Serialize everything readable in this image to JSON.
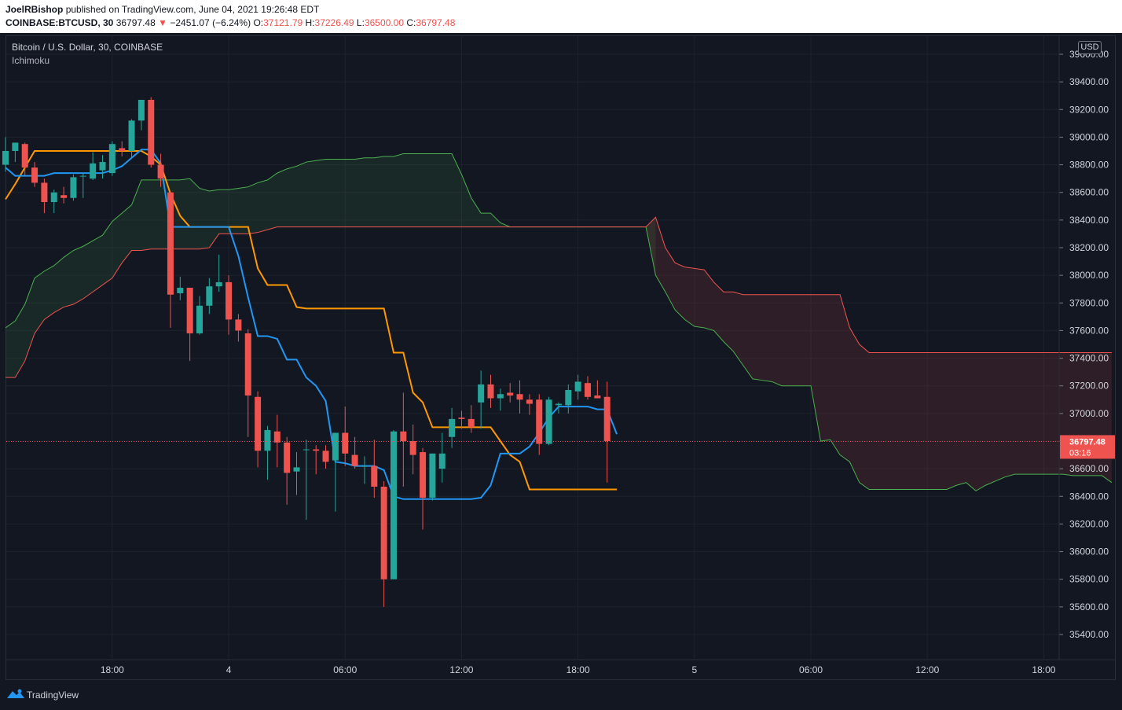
{
  "header": {
    "author": "JoelRBishop",
    "published": "published on TradingView.com, June 04, 2021 19:26:48 EDT",
    "symbol": "COINBASE:BTCUSD, 30",
    "last": "36797.48",
    "arrow": "▼",
    "change": "−2451.07 (−6.24%)",
    "o_label": "O:",
    "o_value": "37121.79",
    "h_label": "H:",
    "h_value": "37226.49",
    "l_label": "L:",
    "l_value": "36500.00",
    "c_label": "C:",
    "c_value": "36797.48"
  },
  "legend": {
    "title": "Bitcoin / U.S. Dollar, 30, COINBASE",
    "indicator": "Ichimoku"
  },
  "price_scale": {
    "currency": "USD"
  },
  "price_label": {
    "value": "36797.48",
    "countdown": "03:16"
  },
  "footer": {
    "brand": "TradingView",
    "icon": "tradingview-logo-icon"
  },
  "colors": {
    "background": "#131722",
    "up": "#26a69a",
    "down": "#ef5350",
    "conversion": "#2196f3",
    "base": "#ff9800",
    "span_a": "#4caf50",
    "span_b": "#ef5350"
  },
  "chart_data": {
    "type": "candlestick",
    "title": "Bitcoin / U.S. Dollar, 30, COINBASE",
    "xlabel": "",
    "ylabel": "",
    "ylim": [
      35200,
      39700
    ],
    "grid": true,
    "interval": "30",
    "x_ticks": [
      "18:00",
      "4",
      "06:00",
      "12:00",
      "18:00",
      "5",
      "06:00",
      "12:00",
      "18:00"
    ],
    "y_ticks": [
      "35400.00",
      "35600.00",
      "35800.00",
      "36000.00",
      "36200.00",
      "36400.00",
      "36600.00",
      "36800.00",
      "37000.00",
      "37200.00",
      "37400.00",
      "37600.00",
      "37800.00",
      "38000.00",
      "38200.00",
      "38400.00",
      "38600.00",
      "38800.00",
      "39000.00",
      "39200.00",
      "39400.00",
      "39600.00"
    ],
    "candles": [
      {
        "o": 38800,
        "h": 39000,
        "l": 38750,
        "c": 38900
      },
      {
        "o": 38900,
        "h": 38960,
        "l": 38820,
        "c": 38960
      },
      {
        "o": 38950,
        "h": 38960,
        "l": 38720,
        "c": 38780
      },
      {
        "o": 38780,
        "h": 38820,
        "l": 38640,
        "c": 38670
      },
      {
        "o": 38670,
        "h": 38700,
        "l": 38450,
        "c": 38530
      },
      {
        "o": 38530,
        "h": 38620,
        "l": 38450,
        "c": 38600
      },
      {
        "o": 38580,
        "h": 38640,
        "l": 38520,
        "c": 38560
      },
      {
        "o": 38560,
        "h": 38730,
        "l": 38540,
        "c": 38710
      },
      {
        "o": 38720,
        "h": 38740,
        "l": 38560,
        "c": 38720
      },
      {
        "o": 38700,
        "h": 38890,
        "l": 38690,
        "c": 38810
      },
      {
        "o": 38760,
        "h": 38870,
        "l": 38700,
        "c": 38820
      },
      {
        "o": 38740,
        "h": 38970,
        "l": 38720,
        "c": 38950
      },
      {
        "o": 38920,
        "h": 38970,
        "l": 38860,
        "c": 38900
      },
      {
        "o": 38900,
        "h": 39130,
        "l": 38850,
        "c": 39120
      },
      {
        "o": 39120,
        "h": 39270,
        "l": 39050,
        "c": 39270
      },
      {
        "o": 39270,
        "h": 39290,
        "l": 38780,
        "c": 38800
      },
      {
        "o": 38800,
        "h": 38880,
        "l": 38640,
        "c": 38700
      },
      {
        "o": 38600,
        "h": 38610,
        "l": 37620,
        "c": 37860
      },
      {
        "o": 37870,
        "h": 37990,
        "l": 37820,
        "c": 37910
      },
      {
        "o": 37910,
        "h": 37910,
        "l": 37380,
        "c": 37580
      },
      {
        "o": 37580,
        "h": 37850,
        "l": 37570,
        "c": 37780
      },
      {
        "o": 37780,
        "h": 37980,
        "l": 37720,
        "c": 37920
      },
      {
        "o": 37920,
        "h": 38150,
        "l": 37880,
        "c": 37950
      },
      {
        "o": 37950,
        "h": 38000,
        "l": 37570,
        "c": 37680
      },
      {
        "o": 37680,
        "h": 37720,
        "l": 37520,
        "c": 37600
      },
      {
        "o": 37580,
        "h": 37610,
        "l": 36830,
        "c": 37130
      },
      {
        "o": 37120,
        "h": 37160,
        "l": 36610,
        "c": 36730
      },
      {
        "o": 36730,
        "h": 36910,
        "l": 36520,
        "c": 36880
      },
      {
        "o": 36870,
        "h": 36990,
        "l": 36610,
        "c": 36790
      },
      {
        "o": 36790,
        "h": 36830,
        "l": 36340,
        "c": 36570
      },
      {
        "o": 36580,
        "h": 36720,
        "l": 36410,
        "c": 36610
      },
      {
        "o": 36740,
        "h": 36810,
        "l": 36230,
        "c": 36740
      },
      {
        "o": 36740,
        "h": 36770,
        "l": 36560,
        "c": 36730
      },
      {
        "o": 36730,
        "h": 36770,
        "l": 36600,
        "c": 36650
      },
      {
        "o": 36660,
        "h": 36860,
        "l": 36290,
        "c": 36860
      },
      {
        "o": 36860,
        "h": 37050,
        "l": 36620,
        "c": 36710
      },
      {
        "o": 36700,
        "h": 36830,
        "l": 36600,
        "c": 36620
      },
      {
        "o": 36620,
        "h": 36690,
        "l": 36490,
        "c": 36620
      },
      {
        "o": 36620,
        "h": 36810,
        "l": 36390,
        "c": 36470
      },
      {
        "o": 36470,
        "h": 36510,
        "l": 35600,
        "c": 35800
      },
      {
        "o": 35800,
        "h": 36880,
        "l": 35800,
        "c": 36870
      },
      {
        "o": 36870,
        "h": 37150,
        "l": 36470,
        "c": 36800
      },
      {
        "o": 36800,
        "h": 36920,
        "l": 36560,
        "c": 36700
      },
      {
        "o": 36720,
        "h": 36750,
        "l": 36160,
        "c": 36390
      },
      {
        "o": 36390,
        "h": 36710,
        "l": 36370,
        "c": 36710
      },
      {
        "o": 36600,
        "h": 36860,
        "l": 36500,
        "c": 36710
      },
      {
        "o": 36830,
        "h": 37040,
        "l": 36750,
        "c": 36960
      },
      {
        "o": 36970,
        "h": 37020,
        "l": 36890,
        "c": 36960
      },
      {
        "o": 36960,
        "h": 37060,
        "l": 36860,
        "c": 36900
      },
      {
        "o": 37080,
        "h": 37310,
        "l": 36890,
        "c": 37210
      },
      {
        "o": 37210,
        "h": 37280,
        "l": 37040,
        "c": 37110
      },
      {
        "o": 37110,
        "h": 37180,
        "l": 37020,
        "c": 37140
      },
      {
        "o": 37150,
        "h": 37220,
        "l": 37080,
        "c": 37130
      },
      {
        "o": 37140,
        "h": 37240,
        "l": 37000,
        "c": 37100
      },
      {
        "o": 37100,
        "h": 37140,
        "l": 36990,
        "c": 37070
      },
      {
        "o": 37100,
        "h": 37140,
        "l": 36700,
        "c": 36780
      },
      {
        "o": 36780,
        "h": 37120,
        "l": 36770,
        "c": 37100
      },
      {
        "o": 37060,
        "h": 37080,
        "l": 37000,
        "c": 37070
      },
      {
        "o": 37060,
        "h": 37210,
        "l": 37000,
        "c": 37170
      },
      {
        "o": 37160,
        "h": 37280,
        "l": 37100,
        "c": 37230
      },
      {
        "o": 37220,
        "h": 37270,
        "l": 37100,
        "c": 37120
      },
      {
        "o": 37130,
        "h": 37240,
        "l": 37110,
        "c": 37110
      },
      {
        "o": 37120,
        "h": 37230,
        "l": 36500,
        "c": 36800
      }
    ],
    "conversion_line": [
      38780,
      38720,
      38720,
      38720,
      38720,
      38740,
      38740,
      38740,
      38740,
      38740,
      38740,
      38760,
      38790,
      38850,
      38910,
      38910,
      38810,
      38350,
      38350,
      38350,
      38350,
      38350,
      38350,
      38350,
      38140,
      37840,
      37560,
      37560,
      37540,
      37390,
      37390,
      37260,
      37200,
      37090,
      36650,
      36640,
      36620,
      36620,
      36620,
      36590,
      36400,
      36380,
      36380,
      36380,
      36380,
      36380,
      36380,
      36380,
      36380,
      36390,
      36480,
      36710,
      36710,
      36710,
      36760,
      36860,
      36970,
      37050,
      37050,
      37050,
      37050,
      37030,
      37030,
      36850
    ],
    "base_line": [
      38550,
      38660,
      38780,
      38900,
      38900,
      38900,
      38900,
      38900,
      38900,
      38900,
      38900,
      38900,
      38900,
      38900,
      38900,
      38860,
      38800,
      38590,
      38430,
      38350,
      38350,
      38350,
      38350,
      38350,
      38350,
      38350,
      38050,
      37930,
      37930,
      37930,
      37770,
      37760,
      37760,
      37760,
      37760,
      37760,
      37760,
      37760,
      37760,
      37760,
      37440,
      37440,
      37150,
      37080,
      36900,
      36900,
      36900,
      36900,
      36900,
      36900,
      36900,
      36800,
      36700,
      36650,
      36450,
      36450,
      36450,
      36450,
      36450,
      36450,
      36450,
      36450,
      36450,
      36450
    ],
    "span_a": [
      37620,
      37670,
      37790,
      37980,
      38030,
      38070,
      38130,
      38180,
      38210,
      38250,
      38290,
      38390,
      38450,
      38510,
      38690,
      38690,
      38690,
      38690,
      38690,
      38700,
      38630,
      38610,
      38620,
      38620,
      38630,
      38640,
      38670,
      38690,
      38740,
      38770,
      38790,
      38820,
      38830,
      38840,
      38840,
      38840,
      38840,
      38850,
      38850,
      38860,
      38860,
      38880,
      38880,
      38880,
      38880,
      38880,
      38880,
      38730,
      38560,
      38450,
      38450,
      38380,
      38350,
      38350,
      38350,
      38350,
      38350,
      38350,
      38350,
      38350,
      38350,
      38350,
      38350,
      38350,
      38350,
      38350,
      38350,
      38000,
      37880,
      37750,
      37680,
      37630,
      37620,
      37600,
      37520,
      37450,
      37350,
      37250,
      37240,
      37230,
      37200,
      37200,
      37200,
      37200,
      36800,
      36810,
      36700,
      36650,
      36500,
      36450,
      36450,
      36450,
      36450,
      36450,
      36450,
      36450,
      36450,
      36450,
      36480,
      36500,
      36440,
      36480,
      36510,
      36540,
      36560,
      36560,
      36560,
      36560,
      36560,
      36560,
      36550,
      36550,
      36550,
      36550,
      36500
    ],
    "span_b": [
      37260,
      37260,
      37380,
      37580,
      37680,
      37730,
      37770,
      37790,
      37830,
      37880,
      37930,
      37980,
      38090,
      38180,
      38180,
      38190,
      38190,
      38190,
      38190,
      38190,
      38190,
      38200,
      38300,
      38300,
      38300,
      38300,
      38310,
      38330,
      38350,
      38350,
      38350,
      38350,
      38350,
      38350,
      38350,
      38350,
      38350,
      38350,
      38350,
      38350,
      38350,
      38350,
      38350,
      38350,
      38350,
      38350,
      38350,
      38350,
      38350,
      38350,
      38350,
      38350,
      38350,
      38350,
      38350,
      38350,
      38350,
      38350,
      38350,
      38350,
      38350,
      38350,
      38350,
      38350,
      38350,
      38350,
      38350,
      38420,
      38200,
      38090,
      38060,
      38050,
      38040,
      37950,
      37880,
      37880,
      37860,
      37860,
      37860,
      37860,
      37860,
      37860,
      37860,
      37860,
      37860,
      37860,
      37860,
      37620,
      37500,
      37440,
      37440,
      37440,
      37440,
      37440,
      37440,
      37440,
      37440,
      37440,
      37440,
      37440,
      37440,
      37440,
      37440,
      37440,
      37440,
      37440,
      37440,
      37440,
      37440,
      37440,
      37440,
      37440,
      37440,
      37440,
      37440
    ]
  }
}
